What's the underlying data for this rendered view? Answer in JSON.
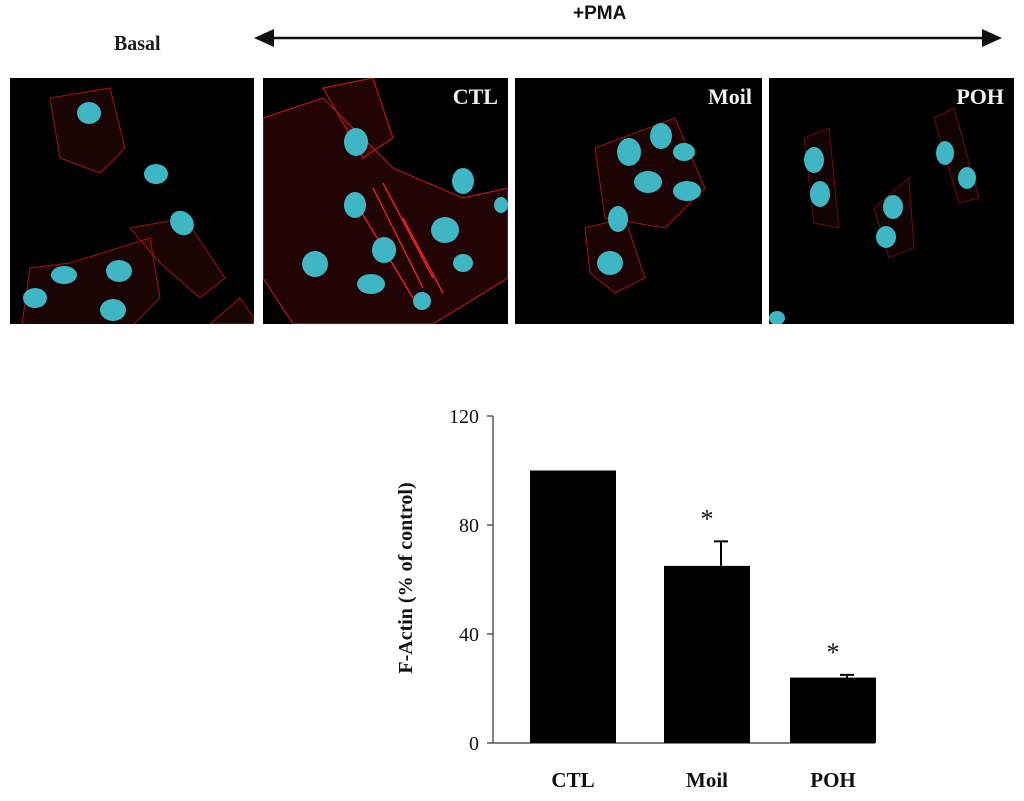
{
  "figure": {
    "basal_label": "Basal",
    "pma_label": "+PMA",
    "panels": [
      {
        "label": ""
      },
      {
        "label": "CTL"
      },
      {
        "label": "Moil"
      },
      {
        "label": "POH"
      }
    ],
    "colors": {
      "nucleus": "#3fb6c4",
      "actin": "#c01818",
      "bar": "#000000",
      "panel_bg": "#000000"
    }
  },
  "chart_data": {
    "type": "bar",
    "categories": [
      "CTL",
      "Moil",
      "POH"
    ],
    "values": [
      100,
      65,
      24
    ],
    "errors": [
      0,
      9,
      1
    ],
    "significance": [
      "",
      "*",
      "*"
    ],
    "title": "",
    "xlabel": "",
    "ylabel": "F-Actin (% of control)",
    "ylim": [
      0,
      120
    ],
    "yticks": [
      0,
      40,
      80,
      120
    ],
    "grid": false,
    "legend": "none"
  }
}
